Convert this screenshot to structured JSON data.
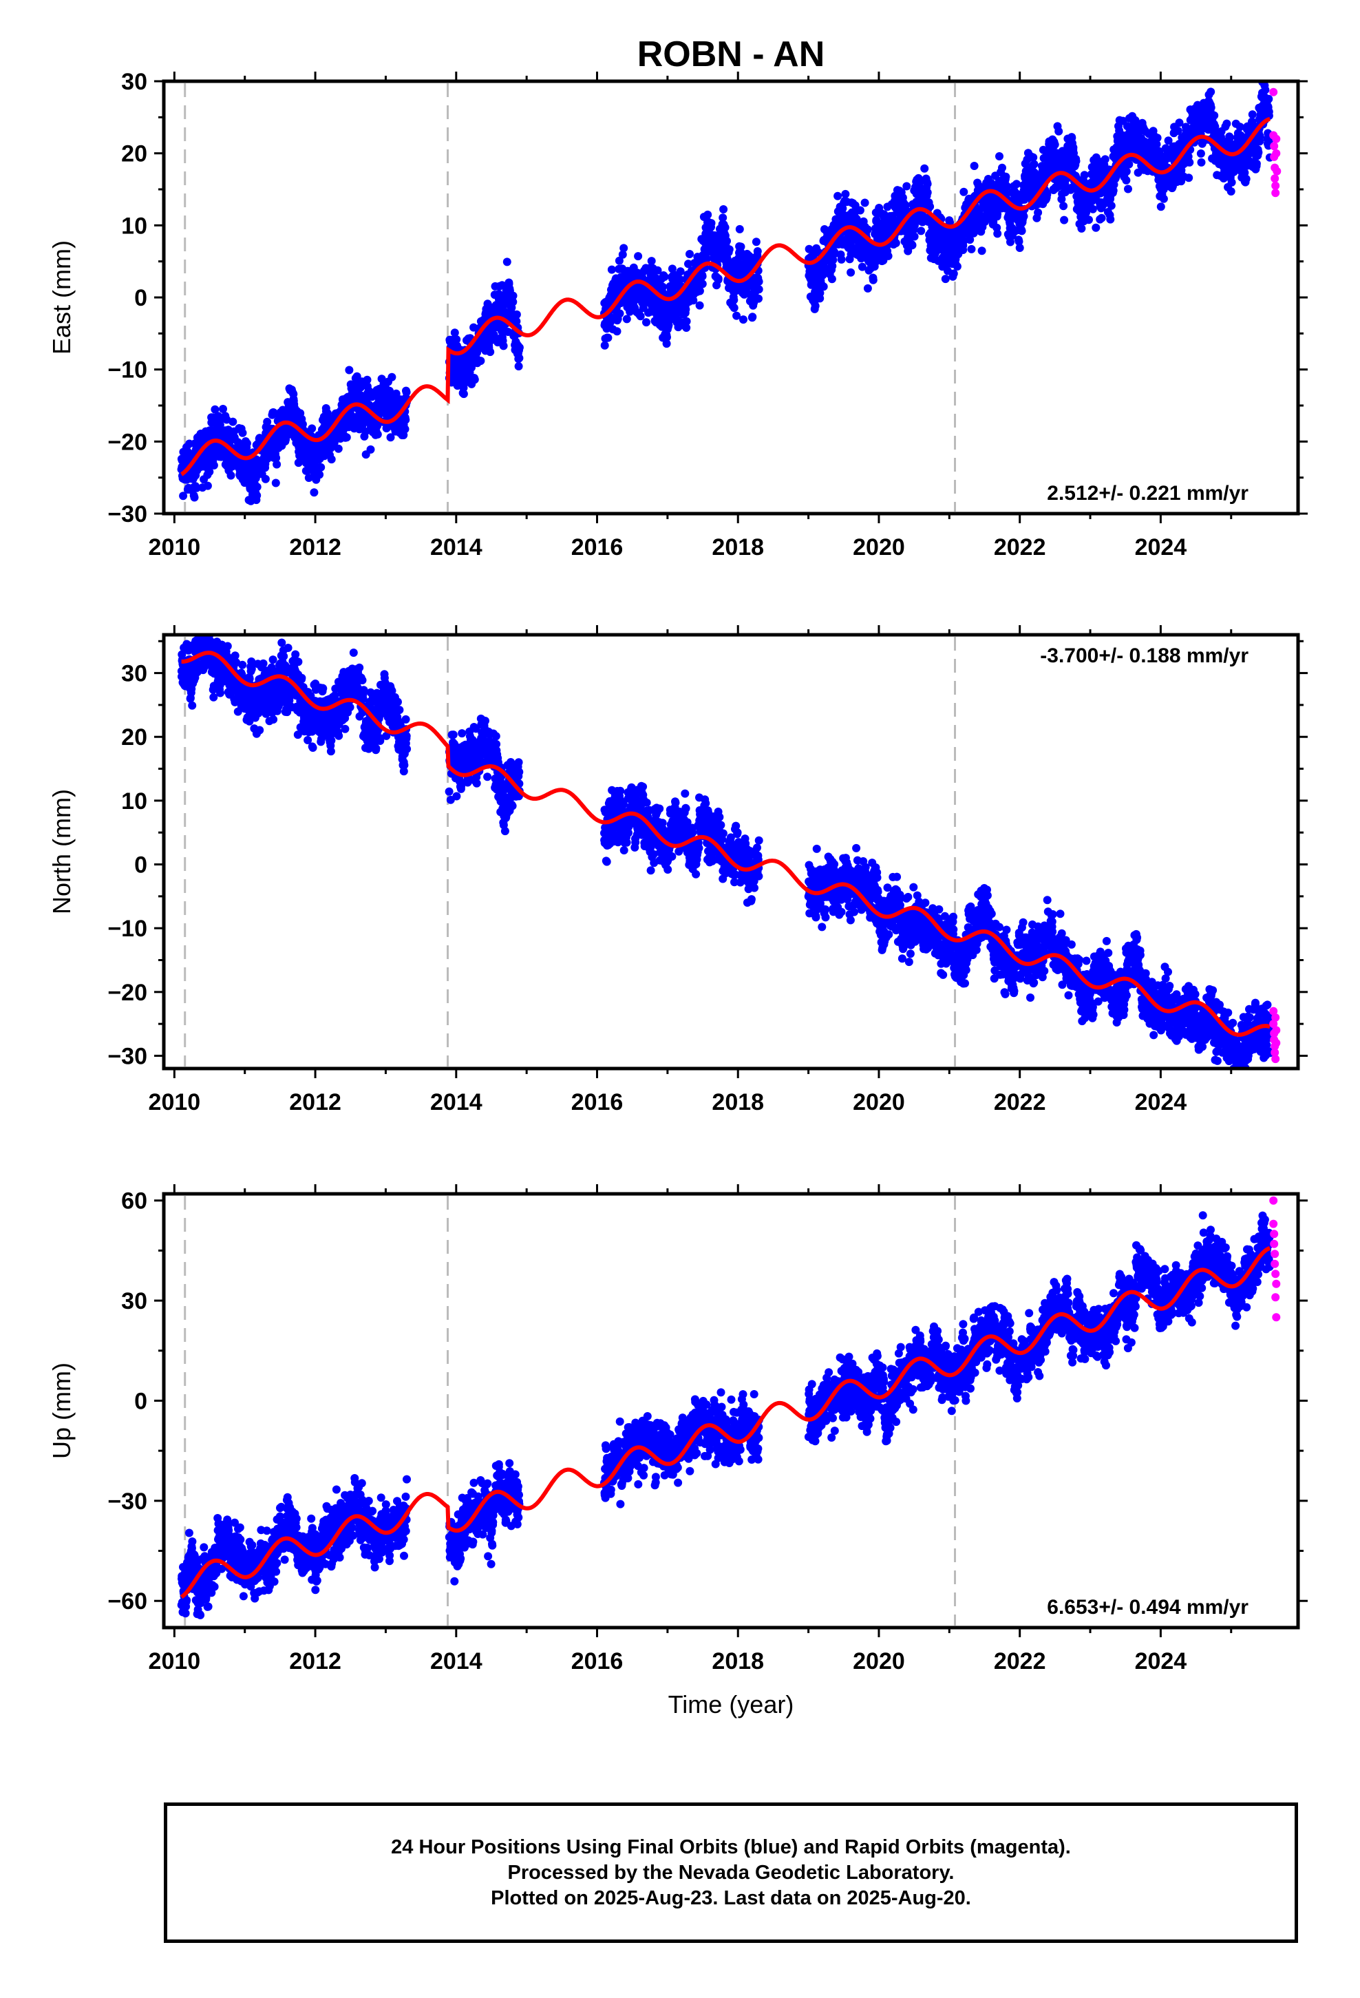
{
  "title": "ROBN - AN",
  "footer": {
    "line1": "24 Hour Positions Using Final Orbits (blue) and Rapid Orbits (magenta).",
    "line2": "Processed by the Nevada Geodetic Laboratory.",
    "line3": "Plotted on 2025-Aug-23. Last data on 2025-Aug-20."
  },
  "colors": {
    "final": "#0000ff",
    "rapid": "#ff00ff",
    "model": "#ff0000",
    "event_line": "#bbbbbb"
  },
  "chart_data": [
    {
      "type": "scatter",
      "ylabel": "East (mm)",
      "xlabel": "",
      "xlim": [
        2009.85,
        2025.95
      ],
      "ylim": [
        -30,
        30
      ],
      "yticks": [
        -30,
        -20,
        -10,
        0,
        10,
        20,
        30
      ],
      "xticks": [
        2010,
        2012,
        2014,
        2016,
        2018,
        2020,
        2022,
        2024
      ],
      "rate_label": "2.512+/- 0.221 mm/yr",
      "rate_position": "bottom-right",
      "event_lines": [
        2010.15,
        2013.88,
        2021.08
      ],
      "segments": [
        [
          2010.1,
          2013.3
        ],
        [
          2013.9,
          2014.9
        ],
        [
          2016.1,
          2018.3
        ],
        [
          2019.0,
          2025.55
        ]
      ],
      "trend": {
        "rate": 2.512,
        "value_at_2018": 0.5
      },
      "annual_amplitude": 1.8,
      "offsets": [
        {
          "year": 2013.88,
          "size": 7
        }
      ],
      "rapid": [
        {
          "x": 2025.6,
          "y": 28.5
        },
        {
          "x": 2025.6,
          "y": 22.5
        },
        {
          "x": 2025.61,
          "y": 21.0
        },
        {
          "x": 2025.61,
          "y": 19.5
        },
        {
          "x": 2025.62,
          "y": 18.0
        },
        {
          "x": 2025.62,
          "y": 16.5
        },
        {
          "x": 2025.63,
          "y": 15.5
        },
        {
          "x": 2025.63,
          "y": 14.5
        },
        {
          "x": 2025.64,
          "y": 22.0
        },
        {
          "x": 2025.64,
          "y": 20.0
        },
        {
          "x": 2025.65,
          "y": 17.5
        }
      ]
    },
    {
      "type": "scatter",
      "ylabel": "North (mm)",
      "xlabel": "",
      "xlim": [
        2009.85,
        2025.95
      ],
      "ylim": [
        -32,
        36
      ],
      "yticks": [
        -30,
        -20,
        -10,
        0,
        10,
        20,
        30
      ],
      "xticks": [
        2010,
        2012,
        2014,
        2016,
        2018,
        2020,
        2022,
        2024
      ],
      "rate_label": "-3.700+/- 0.188 mm/yr",
      "rate_position": "top-right",
      "event_lines": [
        2010.15,
        2013.88,
        2021.08
      ],
      "segments": [
        [
          2010.1,
          2013.3
        ],
        [
          2013.9,
          2014.9
        ],
        [
          2016.1,
          2018.3
        ],
        [
          2019.0,
          2025.55
        ]
      ],
      "trend": {
        "rate": -3.7,
        "value_at_2018": 2.5
      },
      "annual_amplitude": 1.5,
      "offsets": [
        {
          "year": 2013.88,
          "size": -3
        }
      ],
      "rapid": [
        {
          "x": 2025.6,
          "y": -23.0
        },
        {
          "x": 2025.6,
          "y": -25.0
        },
        {
          "x": 2025.61,
          "y": -26.5
        },
        {
          "x": 2025.61,
          "y": -27.5
        },
        {
          "x": 2025.62,
          "y": -28.5
        },
        {
          "x": 2025.62,
          "y": -29.5
        },
        {
          "x": 2025.63,
          "y": -30.5
        },
        {
          "x": 2025.63,
          "y": -24.0
        },
        {
          "x": 2025.64,
          "y": -26.0
        },
        {
          "x": 2025.64,
          "y": -28.0
        }
      ]
    },
    {
      "type": "scatter",
      "ylabel": "Up (mm)",
      "xlabel": "Time (year)",
      "xlim": [
        2009.85,
        2025.95
      ],
      "ylim": [
        -68,
        62
      ],
      "yticks": [
        -60,
        -30,
        0,
        30,
        60
      ],
      "xticks": [
        2010,
        2012,
        2014,
        2016,
        2018,
        2020,
        2022,
        2024
      ],
      "rate_label": "6.653+/- 0.494 mm/yr",
      "rate_position": "bottom-right",
      "event_lines": [
        2010.15,
        2013.88,
        2021.08
      ],
      "segments": [
        [
          2010.1,
          2013.3
        ],
        [
          2013.9,
          2014.9
        ],
        [
          2016.1,
          2018.3
        ],
        [
          2019.0,
          2025.55
        ]
      ],
      "trend": {
        "rate": 6.653,
        "value_at_2018": -5.5
      },
      "annual_amplitude": 4.0,
      "offsets": [
        {
          "year": 2013.88,
          "size": -6
        }
      ],
      "rapid": [
        {
          "x": 2025.6,
          "y": 60.0
        },
        {
          "x": 2025.6,
          "y": 53.0
        },
        {
          "x": 2025.61,
          "y": 50.0
        },
        {
          "x": 2025.61,
          "y": 47.0
        },
        {
          "x": 2025.62,
          "y": 44.0
        },
        {
          "x": 2025.62,
          "y": 41.0
        },
        {
          "x": 2025.63,
          "y": 38.0
        },
        {
          "x": 2025.63,
          "y": 31.0
        },
        {
          "x": 2025.64,
          "y": 25.0
        },
        {
          "x": 2025.64,
          "y": 35.0
        }
      ]
    }
  ]
}
